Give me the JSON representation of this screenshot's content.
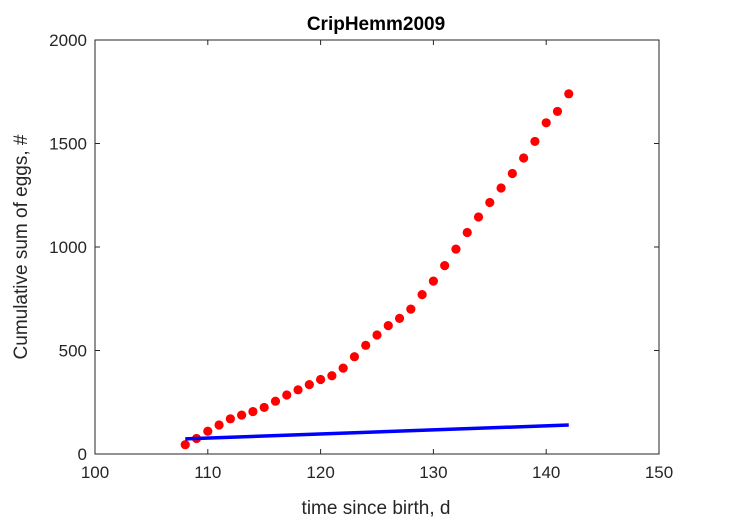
{
  "chart_data": {
    "type": "scatter",
    "title": "CripHemm2009",
    "xlabel": "time since birth, d",
    "ylabel": "Cumulative sum of eggs, #",
    "xlim": [
      100,
      150
    ],
    "ylim": [
      0,
      2000
    ],
    "xticks": [
      100,
      110,
      120,
      130,
      140,
      150
    ],
    "yticks": [
      0,
      500,
      1000,
      1500,
      2000
    ],
    "grid": false,
    "legend": "none",
    "series": [
      {
        "type": "scatter",
        "color": "#ff0000",
        "x": [
          108,
          109,
          110,
          111,
          112,
          113,
          114,
          115,
          116,
          117,
          118,
          119,
          120,
          121,
          122,
          123,
          124,
          125,
          126,
          127,
          128,
          129,
          130,
          131,
          132,
          133,
          134,
          135,
          136,
          137,
          138,
          139,
          140,
          141,
          142
        ],
        "y": [
          45,
          75,
          110,
          140,
          170,
          188,
          205,
          225,
          255,
          285,
          310,
          335,
          360,
          378,
          415,
          470,
          525,
          575,
          620,
          655,
          700,
          770,
          835,
          910,
          990,
          1070,
          1145,
          1215,
          1285,
          1355,
          1430,
          1510,
          1600,
          1655,
          1740
        ]
      },
      {
        "type": "line",
        "color": "#0000ff",
        "x": [
          108,
          142
        ],
        "y": [
          73,
          140
        ]
      }
    ]
  }
}
